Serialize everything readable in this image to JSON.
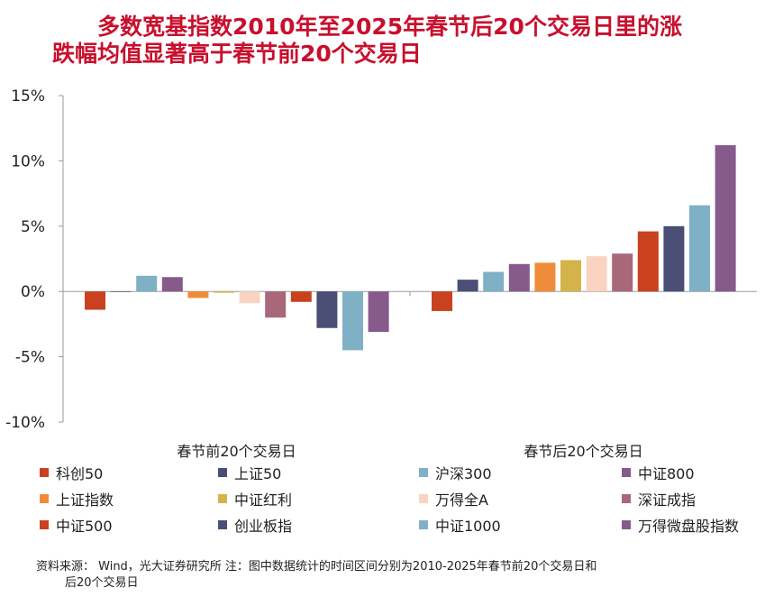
{
  "title": {
    "line1": "多数宽基指数2010年至2025年春节后20个交易日里的涨",
    "line2": "跌幅均值显著高于春节前20个交易日"
  },
  "chart_data": {
    "type": "bar",
    "categories": [
      "春节前20个交易日",
      "春节后20个交易日"
    ],
    "ylim": [
      -10,
      15
    ],
    "yticks": [
      -10,
      -5,
      0,
      5,
      10,
      15
    ],
    "ytick_labels": [
      "-10%",
      "-5%",
      "0%",
      "5%",
      "10%",
      "15%"
    ],
    "series": [
      {
        "name": "科创50",
        "color": "#c9411f",
        "values": [
          -1.4,
          -1.5
        ]
      },
      {
        "name": "上证50",
        "color": "#4b4e75",
        "values": [
          0.0,
          0.9
        ]
      },
      {
        "name": "沪深300",
        "color": "#7fb0c6",
        "values": [
          1.2,
          1.5
        ]
      },
      {
        "name": "中证800",
        "color": "#875a8c",
        "values": [
          1.1,
          2.1
        ]
      },
      {
        "name": "上证指数",
        "color": "#ef8c3a",
        "values": [
          -0.5,
          2.2
        ]
      },
      {
        "name": "中证红利",
        "color": "#d4b349",
        "values": [
          -0.1,
          2.4
        ]
      },
      {
        "name": "万得全A",
        "color": "#fad4c0",
        "values": [
          -0.9,
          2.7
        ]
      },
      {
        "name": "深证成指",
        "color": "#a9677a",
        "values": [
          -2.0,
          2.9
        ]
      },
      {
        "name": "中证500",
        "color": "#c9411f",
        "values": [
          -0.8,
          4.6
        ]
      },
      {
        "name": "创业板指",
        "color": "#4b4e75",
        "values": [
          -2.8,
          5.0
        ]
      },
      {
        "name": "中证1000",
        "color": "#7fb0c6",
        "values": [
          -4.5,
          6.6
        ]
      },
      {
        "name": "万得微盘股指数",
        "color": "#875a8c",
        "values": [
          -3.1,
          11.2
        ]
      }
    ]
  },
  "footer": {
    "line1": "资料来源： Wind，光大证券研究所     注：图中数据统计的时间区间分别为2010-2025年春节前20个交易日和",
    "line2": "后20个交易日"
  }
}
